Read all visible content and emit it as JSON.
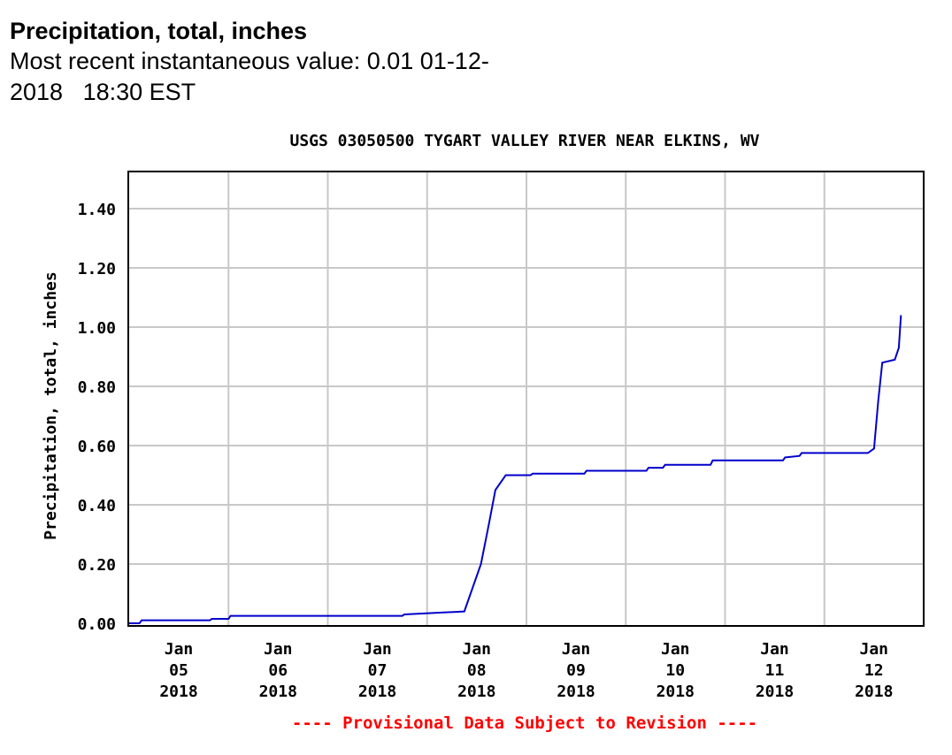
{
  "header": {
    "title": "Precipitation, total, inches",
    "latest_line1": "Most recent instantaneous value: 0.01 01-12-",
    "latest_line2": "2018   18:30 EST"
  },
  "chart_data": {
    "type": "line",
    "title": "USGS 03050500 TYGART VALLEY RIVER NEAR ELKINS, WV",
    "xlabel": "",
    "ylabel": "Precipitation, total, inches",
    "ylim": [
      0,
      1.5
    ],
    "xlim": [
      "2018-01-05 00:00",
      "2018-01-13 00:00"
    ],
    "yticks": [
      "0.00",
      "0.20",
      "0.40",
      "0.60",
      "0.80",
      "1.00",
      "1.20",
      "1.40"
    ],
    "xticks": [
      {
        "month": "Jan",
        "day": "05",
        "year": "2018"
      },
      {
        "month": "Jan",
        "day": "06",
        "year": "2018"
      },
      {
        "month": "Jan",
        "day": "07",
        "year": "2018"
      },
      {
        "month": "Jan",
        "day": "08",
        "year": "2018"
      },
      {
        "month": "Jan",
        "day": "09",
        "year": "2018"
      },
      {
        "month": "Jan",
        "day": "10",
        "year": "2018"
      },
      {
        "month": "Jan",
        "day": "11",
        "year": "2018"
      },
      {
        "month": "Jan",
        "day": "12",
        "year": "2018"
      }
    ],
    "grid": true,
    "line_color": "#0000cc",
    "footnote": "---- Provisional Data Subject to Revision ----",
    "footnote_color": "#ff0000",
    "series": [
      {
        "x": [
          "2018-01-04 23:00",
          "2018-01-05 02:30",
          "2018-01-05 03:00",
          "2018-01-05 19:30",
          "2018-01-05 20:00",
          "2018-01-06 00:00",
          "2018-01-06 00:30",
          "2018-01-07 18:00",
          "2018-01-07 18:30",
          "2018-01-08 09:00",
          "2018-01-08 13:00",
          "2018-01-08 15:00",
          "2018-01-08 16:30",
          "2018-01-08 19:00",
          "2018-01-08 19:30",
          "2018-01-09 01:00",
          "2018-01-09 01:30",
          "2018-01-09 14:00",
          "2018-01-09 14:30",
          "2018-01-10 05:00",
          "2018-01-10 05:30",
          "2018-01-10 09:00",
          "2018-01-10 09:30",
          "2018-01-10 20:30",
          "2018-01-10 21:00",
          "2018-01-11 14:00",
          "2018-01-11 14:30",
          "2018-01-11 18:00",
          "2018-01-11 18:30",
          "2018-01-12 10:30",
          "2018-01-12 12:00",
          "2018-01-12 13:00",
          "2018-01-12 14:00",
          "2018-01-12 17:00",
          "2018-01-12 18:00",
          "2018-01-12 18:30"
        ],
        "values": [
          0.0,
          0.0,
          0.01,
          0.01,
          0.015,
          0.015,
          0.025,
          0.025,
          0.03,
          0.04,
          0.2,
          0.34,
          0.45,
          0.5,
          0.5,
          0.5,
          0.505,
          0.505,
          0.515,
          0.515,
          0.525,
          0.525,
          0.535,
          0.535,
          0.55,
          0.55,
          0.56,
          0.565,
          0.575,
          0.575,
          0.59,
          0.75,
          0.88,
          0.89,
          0.93,
          1.04
        ]
      }
    ]
  }
}
